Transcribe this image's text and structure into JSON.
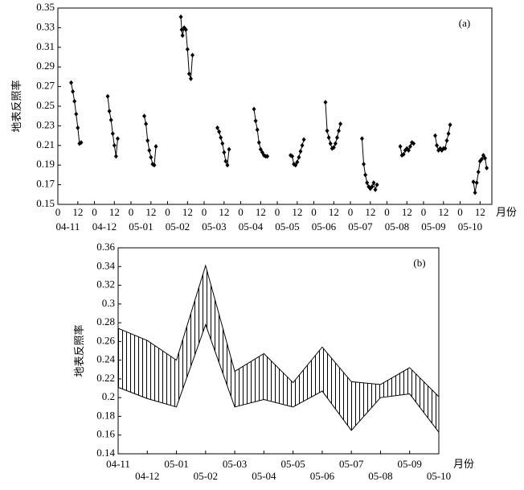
{
  "chart_data": [
    {
      "type": "diurnal-line",
      "label": "(a)",
      "ylabel": "地表反照率",
      "xlabel": "月份",
      "ylim": [
        0.15,
        0.35
      ],
      "yticks": [
        0.15,
        0.17,
        0.19,
        0.21,
        0.23,
        0.25,
        0.27,
        0.29,
        0.31,
        0.33,
        0.35
      ],
      "xlim": [
        0,
        24
      ],
      "xticks": [
        0,
        12
      ],
      "color": "#000000",
      "groups": [
        {
          "month": "04-11",
          "x": [
            8,
            9,
            10,
            11,
            12,
            13,
            14
          ],
          "values": [
            0.274,
            0.265,
            0.255,
            0.242,
            0.228,
            0.212,
            0.213
          ]
        },
        {
          "month": "04-12",
          "x": [
            8,
            9,
            10,
            11,
            12,
            13,
            14
          ],
          "values": [
            0.26,
            0.245,
            0.236,
            0.222,
            0.21,
            0.199,
            0.217
          ]
        },
        {
          "month": "05-01",
          "x": [
            8,
            9,
            10,
            11,
            12,
            13,
            14,
            15
          ],
          "values": [
            0.24,
            0.232,
            0.215,
            0.205,
            0.198,
            0.191,
            0.19,
            0.209
          ]
        },
        {
          "month": "05-02",
          "x": [
            8,
            8.5,
            9,
            10,
            11,
            12,
            13,
            14,
            15
          ],
          "values": [
            0.341,
            0.328,
            0.322,
            0.33,
            0.328,
            0.308,
            0.283,
            0.278,
            0.302
          ]
        },
        {
          "month": "05-03",
          "x": [
            8,
            9,
            10,
            11,
            12,
            13,
            14,
            15
          ],
          "values": [
            0.228,
            0.224,
            0.218,
            0.212,
            0.203,
            0.194,
            0.19,
            0.206
          ]
        },
        {
          "month": "05-04",
          "x": [
            8,
            9,
            10,
            11,
            12,
            13,
            14,
            15,
            16
          ],
          "values": [
            0.247,
            0.235,
            0.226,
            0.213,
            0.206,
            0.203,
            0.2,
            0.199,
            0.199
          ]
        },
        {
          "month": "05-05",
          "x": [
            8,
            9,
            10,
            11,
            12,
            13,
            14,
            15,
            16
          ],
          "values": [
            0.2,
            0.199,
            0.191,
            0.19,
            0.193,
            0.198,
            0.204,
            0.21,
            0.216
          ]
        },
        {
          "month": "05-06",
          "x": [
            7,
            8,
            9,
            10,
            11,
            12,
            13,
            14,
            15,
            16
          ],
          "values": [
            0.254,
            0.225,
            0.218,
            0.212,
            0.207,
            0.208,
            0.212,
            0.218,
            0.225,
            0.232
          ]
        },
        {
          "month": "05-07",
          "x": [
            7,
            8,
            9,
            10,
            11,
            12,
            13,
            14,
            15,
            16
          ],
          "values": [
            0.217,
            0.191,
            0.18,
            0.172,
            0.168,
            0.166,
            0.168,
            0.172,
            0.165,
            0.17
          ]
        },
        {
          "month": "05-08",
          "x": [
            8,
            9,
            10,
            11,
            12,
            13,
            14,
            15,
            16
          ],
          "values": [
            0.209,
            0.2,
            0.201,
            0.205,
            0.207,
            0.205,
            0.209,
            0.213,
            0.212
          ]
        },
        {
          "month": "05-09",
          "x": [
            7,
            8,
            9,
            10,
            11,
            12,
            13,
            14,
            15,
            16
          ],
          "values": [
            0.22,
            0.21,
            0.205,
            0.207,
            0.205,
            0.207,
            0.207,
            0.215,
            0.222,
            0.231
          ]
        },
        {
          "month": "05-10",
          "x": [
            8,
            9,
            10,
            11,
            12,
            13,
            14,
            15,
            16
          ],
          "values": [
            0.173,
            0.162,
            0.172,
            0.183,
            0.194,
            0.196,
            0.2,
            0.197,
            0.187
          ]
        }
      ]
    },
    {
      "type": "range-area",
      "label": "(b)",
      "ylabel": "地表反照率",
      "xlabel": "月份",
      "ylim": [
        0.14,
        0.36
      ],
      "yticks": [
        0.14,
        0.16,
        0.18,
        0.2,
        0.22,
        0.24,
        0.26,
        0.28,
        0.3,
        0.32,
        0.34,
        0.36
      ],
      "color": "#000000",
      "categories": [
        "04-11",
        "04-12",
        "05-01",
        "05-02",
        "05-03",
        "05-04",
        "05-05",
        "05-06",
        "05-07",
        "05-08",
        "05-09",
        "05-10"
      ],
      "max": [
        0.274,
        0.261,
        0.24,
        0.341,
        0.228,
        0.247,
        0.216,
        0.254,
        0.217,
        0.214,
        0.232,
        0.201
      ],
      "min": [
        0.211,
        0.199,
        0.19,
        0.278,
        0.19,
        0.198,
        0.19,
        0.207,
        0.165,
        0.2,
        0.204,
        0.163
      ]
    }
  ]
}
